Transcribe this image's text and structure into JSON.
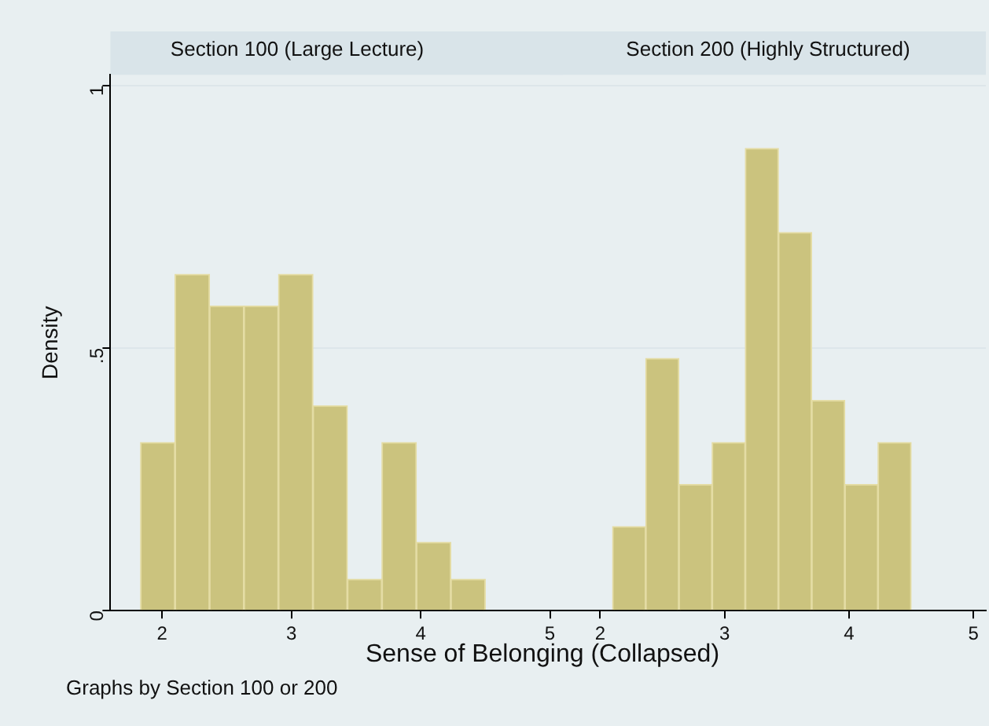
{
  "chart_data": [
    {
      "type": "histogram",
      "title": "Section 100 (Large Lecture)",
      "xlabel": "Sense of Belonging (Collapsed)",
      "ylabel": "Density",
      "annotations": [
        "Graphs by Section 100 or 200"
      ],
      "bins": [
        1.833,
        2.1,
        2.367,
        2.633,
        2.9,
        3.167,
        3.433,
        3.7,
        3.967,
        4.233,
        4.5
      ],
      "values": [
        0.32,
        0.64,
        0.58,
        0.58,
        0.64,
        0.39,
        0.06,
        0.32,
        0.13,
        0.06
      ],
      "color": "#cbc37e",
      "xlim": [
        1.6,
        5.1
      ],
      "xticks": [
        2,
        3,
        4,
        5
      ],
      "ylim": [
        0,
        1.02
      ],
      "yticks": [
        0,
        {
          "value": 0.5,
          "label": ".5"
        },
        1
      ],
      "grid": "y"
    },
    {
      "type": "histogram",
      "title": "Section 200 (Highly Structured)",
      "bins": [
        2.1,
        2.367,
        2.633,
        2.9,
        3.167,
        3.433,
        3.7,
        3.967,
        4.233,
        4.5
      ],
      "values": [
        0.16,
        0.48,
        0.24,
        0.32,
        0.88,
        0.72,
        0.4,
        0.24,
        0.32
      ],
      "color": "#cbc37e",
      "xlim": [
        1.6,
        5.1
      ],
      "xticks": [
        2,
        3,
        4,
        5
      ],
      "yticks": [
        0,
        0.5,
        1
      ],
      "grid": "y",
      "tick_labels": "x"
    }
  ]
}
